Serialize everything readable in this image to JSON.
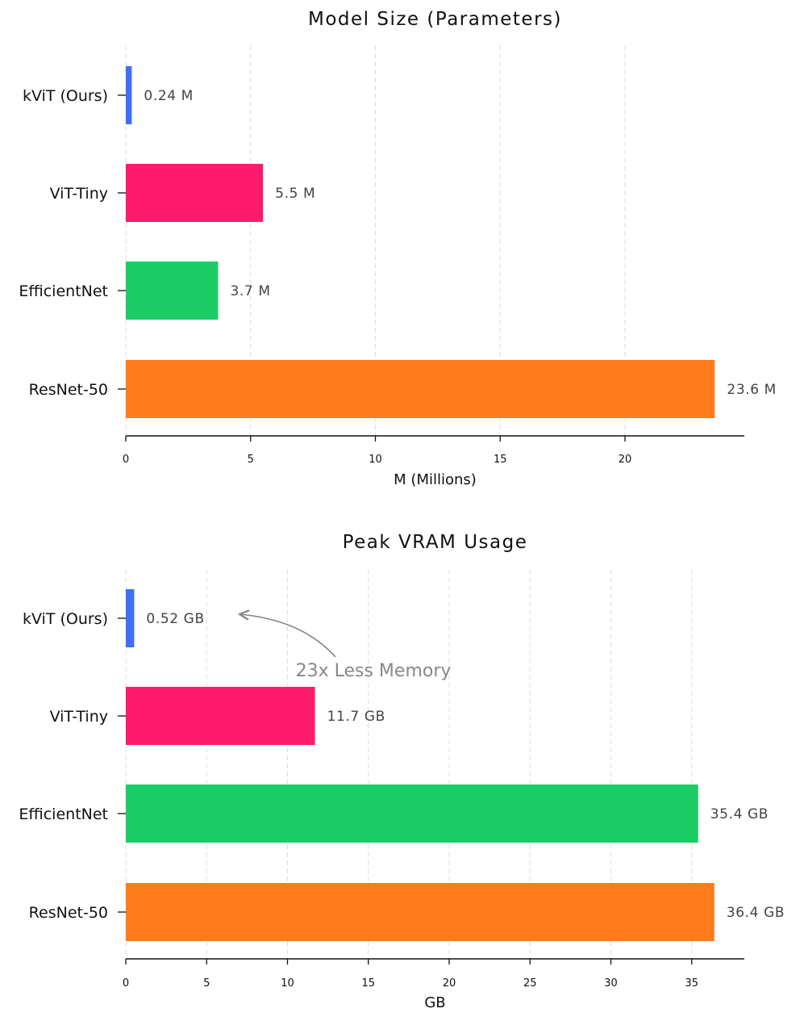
{
  "chart_data": [
    {
      "type": "bar",
      "orientation": "horizontal",
      "title": "Model Size (Parameters)",
      "xlabel": "M (Millions)",
      "ylabel": "",
      "categories": [
        "kViT (Ours)",
        "ViT-Tiny",
        "EfficientNet",
        "ResNet-50"
      ],
      "values": [
        0.24,
        5.5,
        3.7,
        23.6
      ],
      "value_labels": [
        "0.24 M",
        "5.5 M",
        "3.7 M",
        "23.6 M"
      ],
      "colors": [
        "#3f6ff6",
        "#ff1a6b",
        "#1ccc66",
        "#ff7c1c"
      ],
      "xticks": [
        0,
        5,
        10,
        15,
        20
      ],
      "xtick_labels": [
        "0",
        "5",
        "10",
        "15",
        "20"
      ],
      "xlim": [
        0,
        24.8
      ],
      "grid": "vertical dashed",
      "legend": "none"
    },
    {
      "type": "bar",
      "orientation": "horizontal",
      "title": "Peak VRAM Usage",
      "xlabel": "GB",
      "ylabel": "",
      "categories": [
        "kViT (Ours)",
        "ViT-Tiny",
        "EfficientNet",
        "ResNet-50"
      ],
      "values": [
        0.52,
        11.7,
        35.4,
        36.4
      ],
      "value_labels": [
        "0.52 GB",
        "11.7 GB",
        "35.4 GB",
        "36.4 GB"
      ],
      "colors": [
        "#3f6ff6",
        "#ff1a6b",
        "#1ccc66",
        "#ff7c1c"
      ],
      "xticks": [
        0,
        5,
        10,
        15,
        20,
        25,
        30,
        35
      ],
      "xtick_labels": [
        "0",
        "5",
        "10",
        "15",
        "20",
        "25",
        "30",
        "35"
      ],
      "xlim": [
        0,
        38.3
      ],
      "grid": "vertical dashed",
      "legend": "none",
      "annotation": {
        "text": "23x Less Memory",
        "arrow_target": "0.52 GB"
      }
    }
  ]
}
